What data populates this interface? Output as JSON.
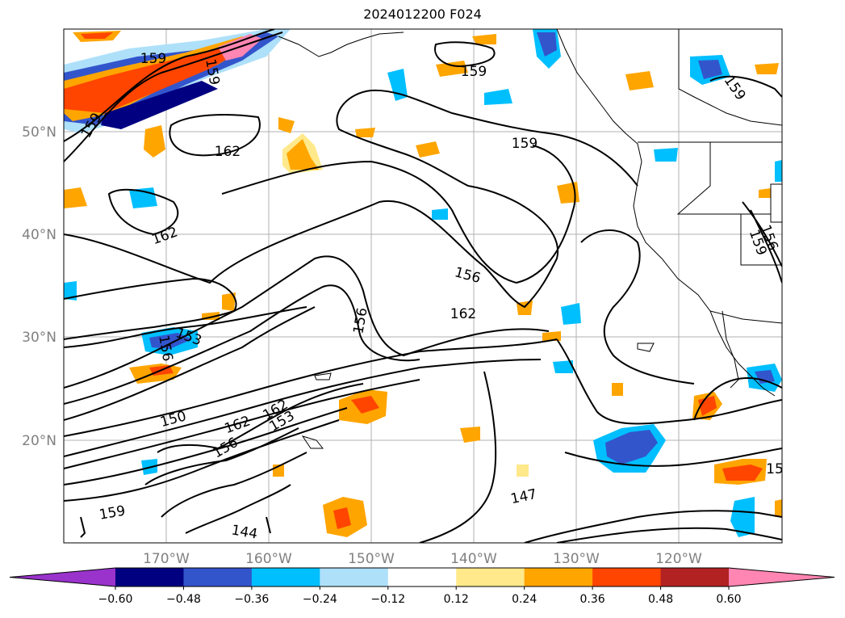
{
  "map": {
    "title": "2024012200 F024",
    "lat_labels": [
      "50°N",
      "40°N",
      "30°N",
      "20°N"
    ],
    "lon_labels": [
      "170°W",
      "160°W",
      "150°W",
      "140°W",
      "130°W",
      "120°W"
    ],
    "contour_labels": [
      "159",
      "159",
      "159",
      "162",
      "162",
      "159",
      "159",
      "156",
      "162",
      "156",
      "153",
      "156",
      "150",
      "162",
      "153",
      "156",
      "162",
      "159",
      "147",
      "144",
      "159",
      "156",
      "159",
      "15"
    ],
    "colorbar": {
      "colors": [
        "#9933cc",
        "#000080",
        "#3355cc",
        "#00bfff",
        "#aee0fa",
        "#ffffff",
        "#ffe98a",
        "#ffa500",
        "#ff4500",
        "#b22222",
        "#ff85b2"
      ],
      "tick_labels": [
        "−0.60",
        "−0.48",
        "−0.36",
        "−0.24",
        "−0.12",
        "0.12",
        "0.24",
        "0.36",
        "0.48",
        "0.60"
      ]
    }
  }
}
